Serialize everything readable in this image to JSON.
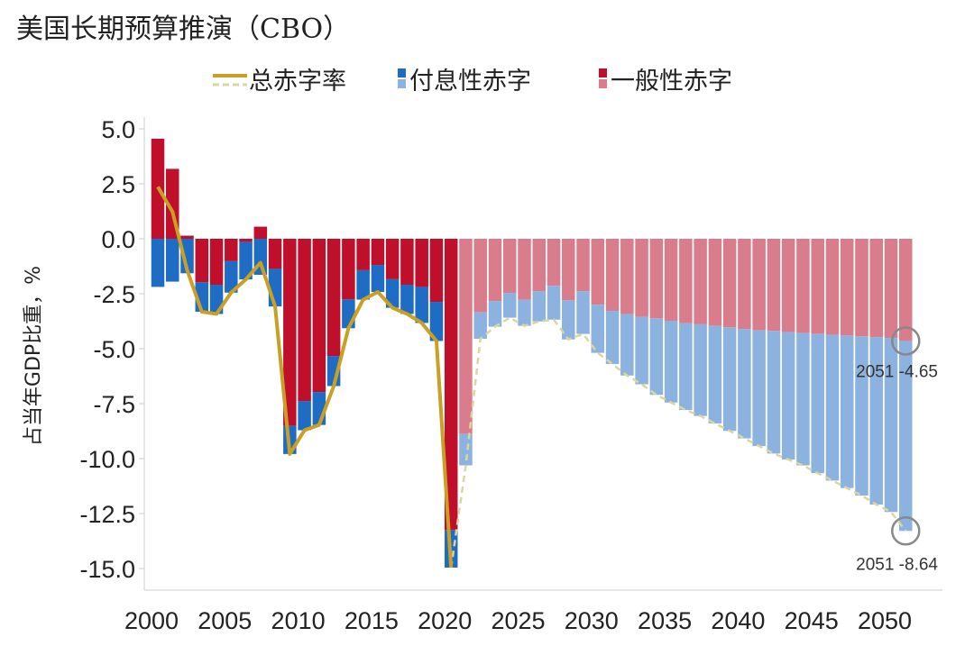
{
  "chart_data": {
    "type": "bar",
    "subtype": "stacked bar with line",
    "title": "美国长期预算推演（CBO）",
    "ylabel": "占当年GDP比重，%",
    "xlabel": "",
    "ylim": [
      -15,
      5
    ],
    "yticks": [
      "5.0",
      "2.5",
      "0.0",
      "-2.5",
      "-5.0",
      "-7.5",
      "-10.0",
      "-12.5",
      "-15.0"
    ],
    "ytick_values": [
      5,
      2.5,
      0,
      -2.5,
      -5,
      -7.5,
      -10,
      -12.5,
      -15
    ],
    "xticks": [
      "2000",
      "2005",
      "2010",
      "2015",
      "2020",
      "2025",
      "2030",
      "2035",
      "2040",
      "2045",
      "2050"
    ],
    "grid": false,
    "legend_position": "top",
    "legend": [
      "总赤字率",
      "付息性赤字",
      "一般性赤字"
    ],
    "projection_start": 2021,
    "years": [
      2000,
      2001,
      2002,
      2003,
      2004,
      2005,
      2006,
      2007,
      2008,
      2009,
      2010,
      2011,
      2012,
      2013,
      2014,
      2015,
      2016,
      2017,
      2018,
      2019,
      2020,
      2021,
      2022,
      2023,
      2024,
      2025,
      2026,
      2027,
      2028,
      2029,
      2030,
      2031,
      2032,
      2033,
      2034,
      2035,
      2036,
      2037,
      2038,
      2039,
      2040,
      2041,
      2042,
      2043,
      2044,
      2045,
      2046,
      2047,
      2048,
      2049,
      2050,
      2051
    ],
    "series": [
      {
        "name": "一般性赤字",
        "values": [
          4.55,
          3.18,
          0.14,
          -1.98,
          -2.09,
          -1.02,
          -0.14,
          0.55,
          -1.37,
          -8.51,
          -7.38,
          -6.97,
          -5.33,
          -2.76,
          -1.43,
          -1.19,
          -1.84,
          -2.09,
          -2.19,
          -2.87,
          -13.25,
          -8.88,
          -3.35,
          -2.83,
          -2.46,
          -2.77,
          -2.39,
          -2.14,
          -2.8,
          -2.39,
          -3.0,
          -3.28,
          -3.42,
          -3.55,
          -3.62,
          -3.73,
          -3.83,
          -3.89,
          -3.96,
          -4.03,
          -4.1,
          -4.17,
          -4.19,
          -4.24,
          -4.28,
          -4.33,
          -4.37,
          -4.4,
          -4.44,
          -4.47,
          -4.51,
          -4.65
        ]
      },
      {
        "name": "付息性赤字",
        "values": [
          -2.19,
          -1.95,
          -1.57,
          -1.34,
          -1.33,
          -1.43,
          -1.71,
          -1.64,
          -1.71,
          -1.28,
          -1.33,
          -1.5,
          -1.37,
          -1.31,
          -1.34,
          -1.23,
          -1.3,
          -1.33,
          -1.64,
          -1.78,
          -1.71,
          -1.43,
          -1.2,
          -1.17,
          -1.13,
          -1.19,
          -1.37,
          -1.54,
          -1.78,
          -1.94,
          -2.19,
          -2.42,
          -2.8,
          -3.07,
          -3.48,
          -3.72,
          -3.96,
          -4.17,
          -4.44,
          -4.71,
          -4.98,
          -5.26,
          -5.58,
          -5.8,
          -6.03,
          -6.33,
          -6.63,
          -6.94,
          -7.24,
          -7.62,
          -7.92,
          -8.64
        ]
      },
      {
        "name": "总赤字率",
        "values": [
          2.36,
          1.23,
          -1.43,
          -3.32,
          -3.42,
          -2.45,
          -1.85,
          -1.09,
          -3.08,
          -9.79,
          -8.71,
          -8.47,
          -6.7,
          -4.07,
          -2.77,
          -2.42,
          -3.14,
          -3.42,
          -3.83,
          -4.65,
          -14.96,
          -10.31,
          -4.55,
          -4.0,
          -3.59,
          -3.96,
          -3.76,
          -3.68,
          -4.58,
          -4.33,
          -5.19,
          -5.7,
          -6.22,
          -6.62,
          -7.1,
          -7.45,
          -7.79,
          -8.06,
          -8.4,
          -8.74,
          -9.08,
          -9.43,
          -9.77,
          -10.04,
          -10.31,
          -10.66,
          -11.0,
          -11.34,
          -11.68,
          -12.09,
          -12.43,
          -13.29
        ]
      }
    ],
    "annotations": [
      "2051 -4.65",
      "2051 -8.64"
    ],
    "colors": {
      "general_hist": "#c00f2b",
      "general_proj": "#d97d8c",
      "interest_hist": "#1f6cc4",
      "interest_proj": "#8cb3e0",
      "total_hist": "#c9a024",
      "total_proj": "#d9d6a0",
      "circle": "#888888"
    }
  }
}
